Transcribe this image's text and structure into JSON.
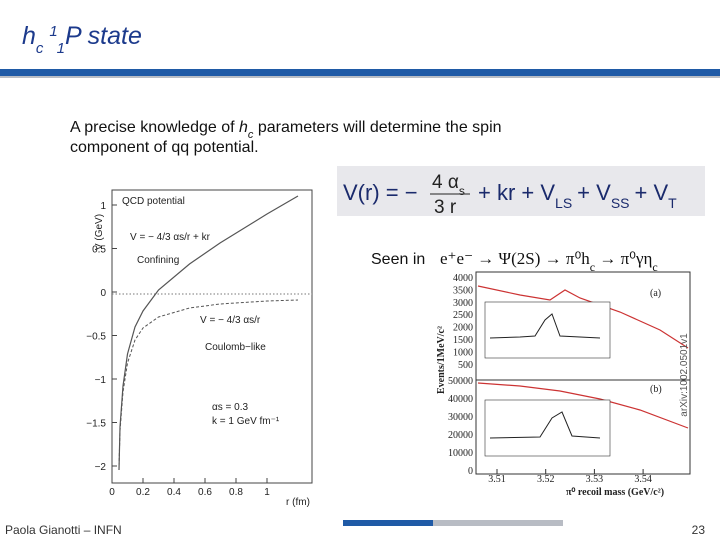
{
  "header": {
    "title": {
      "main": "h",
      "sub": "c",
      "sup": "1",
      "sub2": "1",
      "rest": "P state"
    }
  },
  "body": {
    "intro": {
      "before": "A precise knowledge of ",
      "italic": "h",
      "sub": "c",
      "after": " parameters will determine the spin",
      "line2": "component of qq potential."
    },
    "formula": {
      "lhs": "V(r) = −",
      "num": "4 α",
      "num_sub": "s",
      "den": "3  r",
      "terms": [
        {
          "text": "+ kr + V",
          "sub": "LS"
        },
        {
          "text": "+ V",
          "sub": "SS"
        },
        {
          "text": "+ V",
          "sub": "T"
        }
      ]
    },
    "process": {
      "label": "Seen in",
      "reaction": "e⁺e⁻ → Ψ(2S) → π⁰h",
      "sub1": "c",
      "mid": " → π⁰γη",
      "sub2": "c"
    }
  },
  "left_plot": {
    "y_label": "V (GeV)",
    "x_label": "r (fm)",
    "yticks": [
      "1",
      "0.5",
      "0",
      "−0.5",
      "−1",
      "−1.5",
      "−2"
    ],
    "xticks": [
      "0",
      "0.2",
      "0.4",
      "0.6",
      "0.8",
      "1"
    ],
    "legend_title": "QCD potential",
    "confining_formula": "V = − 4/3 αs/r + kr",
    "confining": "Confining",
    "coulomb_formula": "V = − 4/3 αs/r",
    "coulomb": "Coulomb−like",
    "alpha": "αs = 0.3",
    "k": "k = 1 GeV fm⁻¹"
  },
  "right_plot": {
    "y_label": "Events/1MeV/c²",
    "x_label": "π⁰ recoil mass (GeV/c²)",
    "top_yticks": [
      "4000",
      "3500",
      "3000",
      "2500",
      "2000",
      "1500",
      "1000",
      "500"
    ],
    "bottom_yticks": [
      "50000",
      "40000",
      "30000",
      "20000",
      "10000",
      "0"
    ],
    "xticks": [
      "3.51",
      "3.52",
      "3.53",
      "3.54"
    ],
    "panel_a": "(a)",
    "panel_b": "(b)"
  },
  "side_note": "arXiv:1002.0501v1",
  "footer": {
    "author": "Paola Gianotti – INFN",
    "page": "23"
  }
}
